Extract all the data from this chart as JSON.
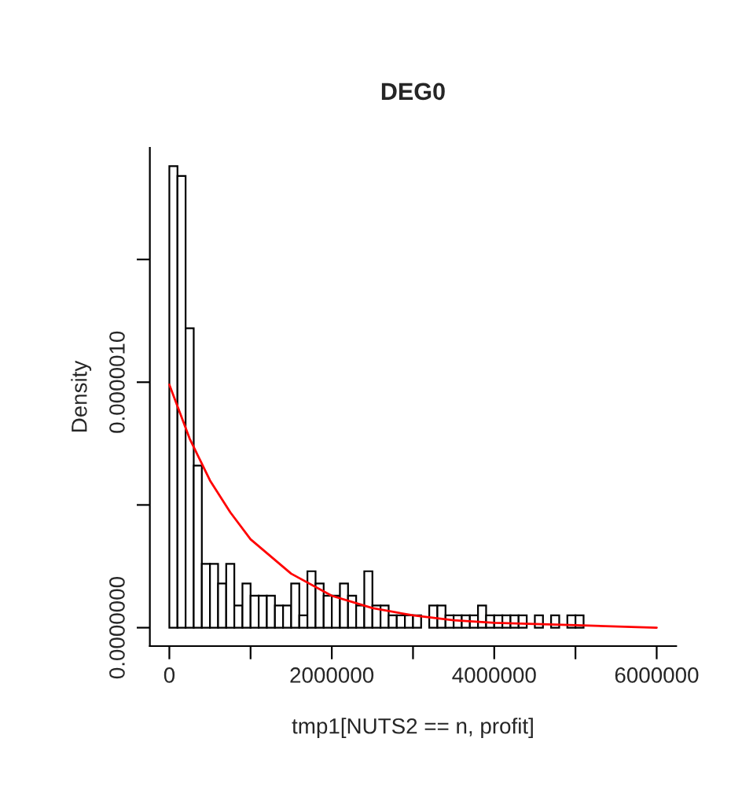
{
  "chart_data": {
    "type": "histogram",
    "title": "DEG0",
    "xlabel": "tmp1[NUTS2 == n, profit]",
    "ylabel": "Density",
    "bins": [
      0,
      100000,
      200000,
      300000,
      400000,
      500000,
      600000,
      700000,
      800000,
      900000,
      1000000,
      1100000,
      1200000,
      1300000,
      1400000,
      1500000,
      1600000,
      1700000,
      1800000,
      1900000,
      2000000,
      2100000,
      2200000,
      2300000,
      2400000,
      2500000,
      2600000,
      2700000,
      2800000,
      2900000,
      3000000,
      3100000,
      3200000,
      3300000,
      3400000,
      3500000,
      3600000,
      3700000,
      3800000,
      3900000,
      4000000,
      4100000,
      4200000,
      4300000,
      4400000,
      4500000,
      4600000,
      4700000,
      4800000,
      4900000,
      5000000,
      5100000
    ],
    "values": [
      1.88e-06,
      1.84e-06,
      1.22e-06,
      6.6e-07,
      2.6e-07,
      2.6e-07,
      1.8e-07,
      2.6e-07,
      9e-08,
      1.8e-07,
      1.3e-07,
      1.3e-07,
      1.3e-07,
      9e-08,
      9e-08,
      1.8e-07,
      5e-08,
      2.3e-07,
      1.8e-07,
      1.3e-07,
      1.3e-07,
      1.8e-07,
      1.3e-07,
      9e-08,
      2.3e-07,
      9e-08,
      9e-08,
      5e-08,
      5e-08,
      5e-08,
      5e-08,
      0,
      9e-08,
      9e-08,
      5e-08,
      5e-08,
      5e-08,
      5e-08,
      9e-08,
      5e-08,
      5e-08,
      5e-08,
      5e-08,
      5e-08,
      0,
      5e-08,
      0,
      5e-08,
      0,
      5e-08,
      5e-08
    ],
    "color": "#ffffff",
    "series": [
      {
        "type": "line",
        "color": "#ff0000",
        "x": [
          0,
          250000,
          500000,
          750000,
          1000000,
          1500000,
          2000000,
          2500000,
          3000000,
          3500000,
          4000000,
          5000000,
          6000000
        ],
        "values": [
          9.9e-07,
          7.7e-07,
          6e-07,
          4.7e-07,
          3.6e-07,
          2.2e-07,
          1.3e-07,
          8e-08,
          5e-08,
          3e-08,
          2e-08,
          1e-08,
          0
        ]
      }
    ],
    "xlim": [
      -240000,
      6240000
    ],
    "ylim": [
      -7.5e-08,
      1.955e-06
    ],
    "xticks": [
      0,
      {
        "value": 1000000,
        "label": null
      },
      2000000,
      {
        "value": 3000000,
        "label": null
      },
      4000000,
      {
        "value": 5000000,
        "label": null
      },
      6000000
    ],
    "yticks": [
      {
        "value": 0,
        "label": "0.0000000"
      },
      {
        "value": 5e-07,
        "label": null
      },
      {
        "value": 1e-06,
        "label": "0.0000010"
      },
      {
        "value": 1.5e-06,
        "label": null
      }
    ],
    "grid": false,
    "legend": false
  }
}
